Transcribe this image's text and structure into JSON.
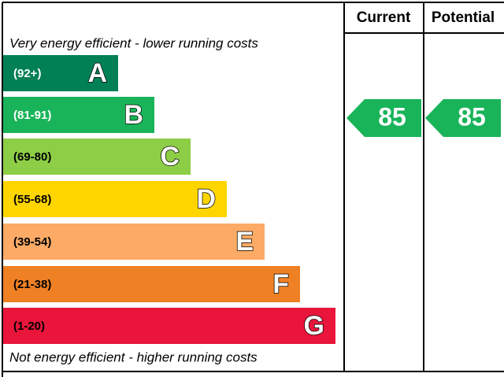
{
  "header": {
    "current": "Current",
    "potential": "Potential"
  },
  "top_note": "Very energy efficient - lower running costs",
  "bottom_note": "Not energy efficient - higher running costs",
  "bands": [
    {
      "range": "(92+)",
      "letter": "A",
      "color": "#008054"
    },
    {
      "range": "(81-91)",
      "letter": "B",
      "color": "#19b459"
    },
    {
      "range": "(69-80)",
      "letter": "C",
      "color": "#8dce46"
    },
    {
      "range": "(55-68)",
      "letter": "D",
      "color": "#ffd500"
    },
    {
      "range": "(39-54)",
      "letter": "E",
      "color": "#fcaa65"
    },
    {
      "range": "(21-38)",
      "letter": "F",
      "color": "#ef8023"
    },
    {
      "range": "(1-20)",
      "letter": "G",
      "color": "#e9153b"
    }
  ],
  "current": {
    "value": 85,
    "color": "#19b459"
  },
  "potential": {
    "value": 85,
    "color": "#19b459"
  }
}
